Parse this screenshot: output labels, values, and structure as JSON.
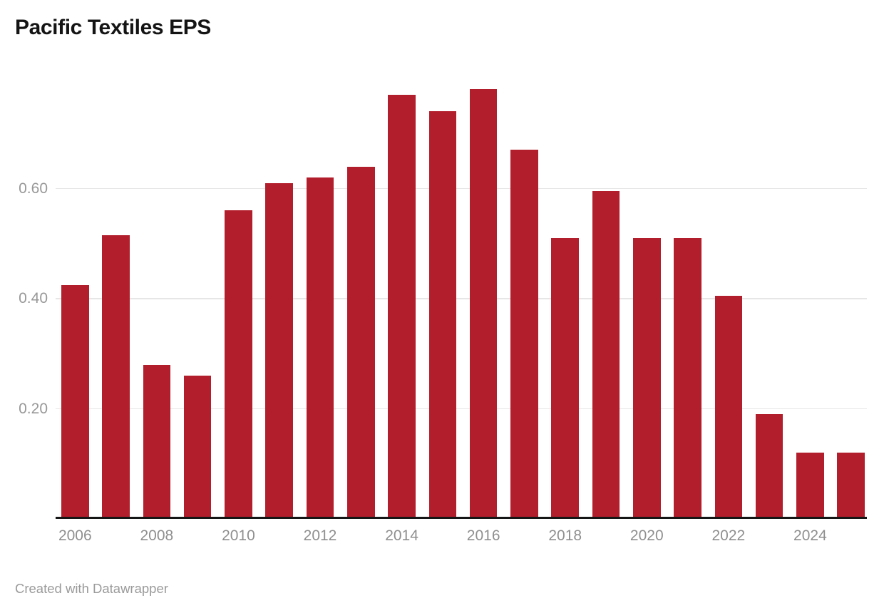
{
  "header": {
    "title": "Pacific Textiles EPS"
  },
  "footer": {
    "credit": "Created with Datawrapper"
  },
  "chart_data": {
    "type": "bar",
    "title": "Pacific Textiles EPS",
    "xlabel": "",
    "ylabel": "",
    "categories": [
      "2006",
      "2007",
      "2008",
      "2009",
      "2010",
      "2011",
      "2012",
      "2013",
      "2014",
      "2015",
      "2016",
      "2017",
      "2018",
      "2019",
      "2020",
      "2021",
      "2022",
      "2023",
      "2024",
      "2025"
    ],
    "values": [
      0.425,
      0.515,
      0.28,
      0.26,
      0.56,
      0.61,
      0.62,
      0.64,
      0.77,
      0.74,
      0.78,
      0.67,
      0.51,
      0.595,
      0.51,
      0.51,
      0.405,
      0.19,
      0.12,
      0.12
    ],
    "ylim": [
      0,
      0.81
    ],
    "y_ticks": [
      0.2,
      0.4,
      0.6
    ],
    "y_tick_labels": [
      "0.20",
      "0.40",
      "0.60"
    ],
    "x_tick_labels": [
      "2006",
      "2008",
      "2010",
      "2012",
      "2014",
      "2016",
      "2018",
      "2020",
      "2022",
      "2024"
    ],
    "grid": "horizontal-only",
    "legend": "none",
    "bar_color": "#b21e2b",
    "axis_line_color": "#161616",
    "gridline_color": "#e6e6e6",
    "tick_label_color": "#949494",
    "background_color": "#ffffff"
  }
}
